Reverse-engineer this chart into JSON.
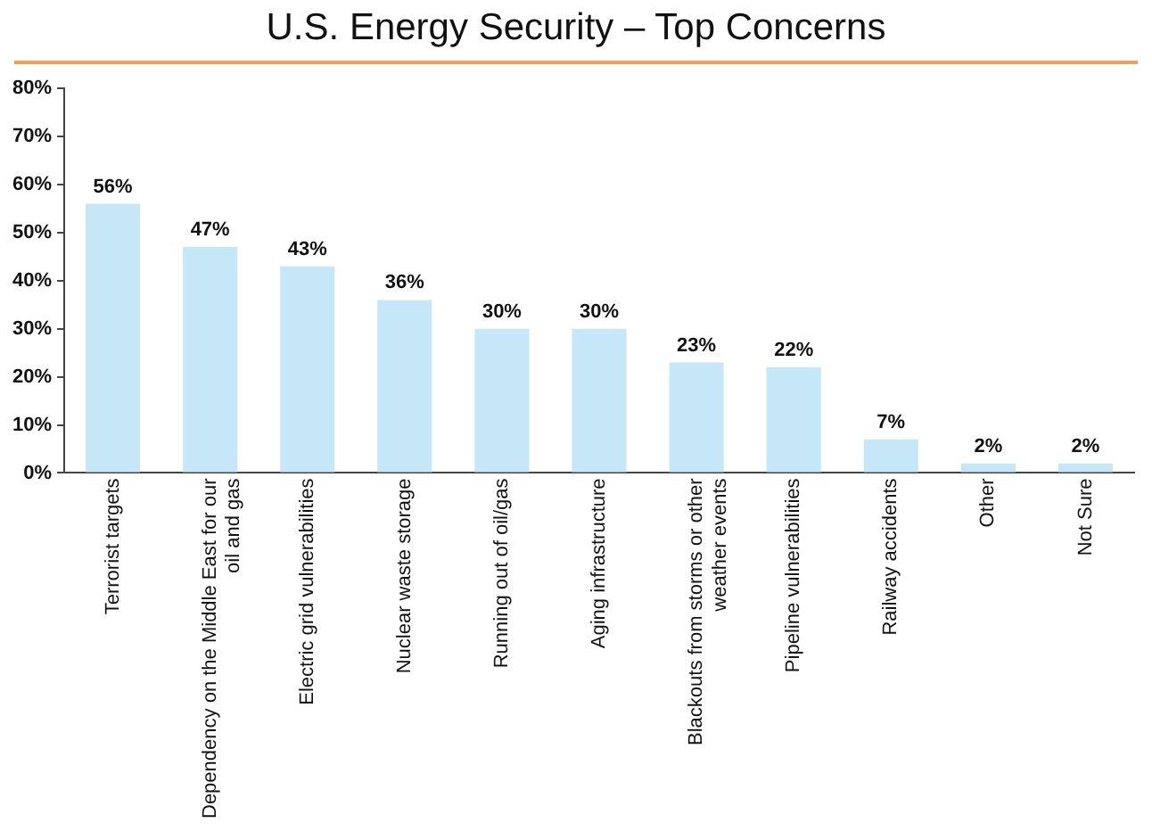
{
  "chart_data": {
    "type": "bar",
    "title": "U.S. Energy Security – Top Concerns",
    "categories": [
      "Terrorist targets",
      "Dependency on the Middle East for our oil and gas",
      "Electric grid vulnerabilities",
      "Nuclear waste storage",
      "Running out of oil/gas",
      "Aging infrastructure",
      "Blackouts from storms or other weather events",
      "Pipeline vulnerabilities",
      "Railway accidents",
      "Other",
      "Not Sure"
    ],
    "values": [
      56,
      47,
      43,
      36,
      30,
      30,
      23,
      22,
      7,
      2,
      2
    ],
    "value_labels": [
      "56%",
      "47%",
      "43%",
      "36%",
      "30%",
      "30%",
      "23%",
      "22%",
      "7%",
      "2%",
      "2%"
    ],
    "color": "#c6e7f8",
    "ylim": [
      0,
      80
    ],
    "yticks": [
      {
        "value": 0,
        "label": "0%"
      },
      {
        "value": 10,
        "label": "10%"
      },
      {
        "value": 20,
        "label": "20%"
      },
      {
        "value": 30,
        "label": "30%"
      },
      {
        "value": 40,
        "label": "40%"
      },
      {
        "value": 50,
        "label": "50%"
      },
      {
        "value": 60,
        "label": "60%"
      },
      {
        "value": 70,
        "label": "70%"
      },
      {
        "value": 80,
        "label": "80%"
      }
    ],
    "grid": false,
    "legend": false
  }
}
